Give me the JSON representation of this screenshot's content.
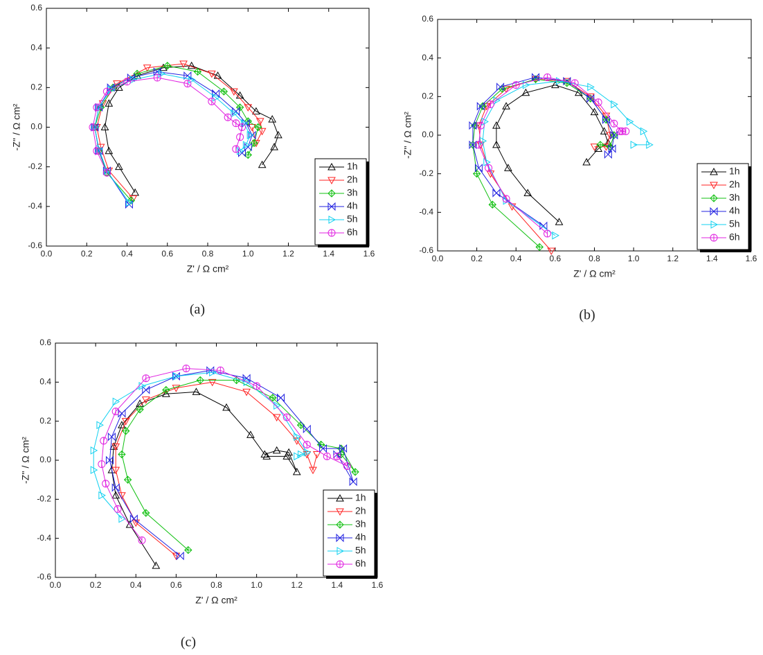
{
  "chart_data": [
    {
      "type": "line",
      "label": "(a)",
      "xlabel": "Z' / Ω cm²",
      "ylabel": "-Z'' / Ω cm²",
      "xlim": [
        0,
        1.6
      ],
      "ylim": [
        -0.6,
        0.6
      ],
      "xticks": [
        {
          "value": 0,
          "label": "0.0"
        },
        0.2,
        0.4,
        0.6,
        0.8,
        {
          "value": 1,
          "label": "1.0"
        },
        1.2,
        1.4,
        1.6
      ],
      "yticks": [
        -0.6,
        -0.4,
        -0.2,
        {
          "value": 0,
          "label": "0.0"
        },
        0.2,
        0.4,
        0.6
      ],
      "grid": false,
      "legend": "lower right",
      "series": [
        {
          "name": "1h",
          "color": "#000000",
          "marker": "triangle-up",
          "x": [
            0.44,
            0.36,
            0.31,
            0.29,
            0.31,
            0.36,
            0.45,
            0.58,
            0.72,
            0.85,
            0.96,
            1.04,
            1.12,
            1.15,
            1.13,
            1.07
          ],
          "values": [
            -0.33,
            -0.2,
            -0.12,
            0,
            0.12,
            0.2,
            0.26,
            0.3,
            0.31,
            0.26,
            0.16,
            0.08,
            0.04,
            -0.04,
            -0.1,
            -0.19
          ]
        },
        {
          "name": "2h",
          "color": "#ff2020",
          "marker": "triangle-down",
          "x": [
            0.43,
            0.31,
            0.27,
            0.25,
            0.28,
            0.35,
            0.5,
            0.68,
            0.82,
            0.93,
            1.0,
            1.06,
            1.07,
            1.04,
            1.02
          ],
          "values": [
            -0.36,
            -0.22,
            -0.1,
            0,
            0.12,
            0.22,
            0.3,
            0.32,
            0.27,
            0.18,
            0.1,
            0.03,
            -0.02,
            -0.08,
            0
          ]
        },
        {
          "name": "3h",
          "color": "#10c010",
          "marker": "diamond",
          "x": [
            0.42,
            0.3,
            0.26,
            0.24,
            0.27,
            0.33,
            0.45,
            0.6,
            0.75,
            0.88,
            0.96,
            1.0,
            1.05,
            1.03,
            1.0
          ],
          "values": [
            -0.37,
            -0.23,
            -0.12,
            0,
            0.1,
            0.2,
            0.27,
            0.31,
            0.28,
            0.18,
            0.1,
            0.03,
            0,
            -0.08,
            -0.14
          ]
        },
        {
          "name": "4h",
          "color": "#2020e0",
          "marker": "bowtie",
          "x": [
            0.41,
            0.3,
            0.26,
            0.24,
            0.26,
            0.32,
            0.42,
            0.55,
            0.7,
            0.84,
            0.94,
            0.99,
            1.02,
            1.0,
            0.97
          ],
          "values": [
            -0.39,
            -0.22,
            -0.12,
            0,
            0.1,
            0.2,
            0.25,
            0.28,
            0.26,
            0.17,
            0.08,
            0.02,
            -0.04,
            -0.1,
            -0.13
          ]
        },
        {
          "name": "5h",
          "color": "#10d0f0",
          "marker": "triangle-right",
          "x": [
            0.41,
            0.3,
            0.26,
            0.24,
            0.26,
            0.32,
            0.43,
            0.57,
            0.72,
            0.84,
            0.93,
            0.98,
            1.01,
            0.99,
            0.96
          ],
          "values": [
            -0.38,
            -0.22,
            -0.11,
            0,
            0.1,
            0.19,
            0.24,
            0.27,
            0.24,
            0.15,
            0.07,
            0.02,
            -0.04,
            -0.09,
            -0.12
          ]
        },
        {
          "name": "6h",
          "color": "#e020e0",
          "marker": "circle",
          "x": [
            0.3,
            0.25,
            0.23,
            0.25,
            0.3,
            0.4,
            0.55,
            0.7,
            0.82,
            0.9,
            0.94,
            0.97,
            0.96,
            0.94
          ],
          "values": [
            -0.23,
            -0.12,
            0,
            0.1,
            0.18,
            0.23,
            0.25,
            0.22,
            0.13,
            0.05,
            0.02,
            0,
            -0.05,
            -0.11
          ]
        }
      ]
    },
    {
      "type": "line",
      "label": "(b)",
      "xlabel": "Z' / Ω cm²",
      "ylabel": "-Z'' / Ω cm²",
      "xlim": [
        0,
        1.6
      ],
      "ylim": [
        -0.6,
        0.6
      ],
      "xticks": [
        {
          "value": 0,
          "label": "0.0"
        },
        0.2,
        0.4,
        0.6,
        0.8,
        {
          "value": 1,
          "label": "1.0"
        },
        1.2,
        1.4,
        1.6
      ],
      "yticks": [
        -0.6,
        -0.4,
        -0.2,
        {
          "value": 0,
          "label": "0.0"
        },
        0.2,
        0.4,
        0.6
      ],
      "grid": false,
      "legend": "lower right",
      "series": [
        {
          "name": "1h",
          "color": "#000000",
          "marker": "triangle-up",
          "x": [
            0.62,
            0.46,
            0.36,
            0.3,
            0.3,
            0.35,
            0.45,
            0.6,
            0.72,
            0.8,
            0.85,
            0.87,
            0.82,
            0.76
          ],
          "values": [
            -0.45,
            -0.3,
            -0.17,
            -0.05,
            0.05,
            0.15,
            0.22,
            0.26,
            0.22,
            0.12,
            0.02,
            -0.04,
            -0.07,
            -0.14
          ]
        },
        {
          "name": "2h",
          "color": "#ff2020",
          "marker": "triangle-down",
          "x": [
            0.58,
            0.38,
            0.27,
            0.22,
            0.21,
            0.25,
            0.35,
            0.5,
            0.66,
            0.78,
            0.86,
            0.88,
            0.86,
            0.8
          ],
          "values": [
            -0.6,
            -0.37,
            -0.2,
            -0.05,
            0.05,
            0.15,
            0.24,
            0.29,
            0.28,
            0.2,
            0.1,
            0,
            -0.06,
            -0.06
          ]
        },
        {
          "name": "3h",
          "color": "#10c010",
          "marker": "diamond",
          "x": [
            0.52,
            0.28,
            0.2,
            0.18,
            0.19,
            0.23,
            0.33,
            0.5,
            0.66,
            0.78,
            0.86,
            0.9,
            0.88,
            0.83
          ],
          "values": [
            -0.58,
            -0.36,
            -0.2,
            -0.05,
            0.05,
            0.15,
            0.24,
            0.29,
            0.27,
            0.19,
            0.08,
            0,
            -0.06,
            -0.05
          ]
        },
        {
          "name": "4h",
          "color": "#2020e0",
          "marker": "bowtie",
          "x": [
            0.54,
            0.3,
            0.21,
            0.18,
            0.18,
            0.22,
            0.32,
            0.5,
            0.66,
            0.78,
            0.86,
            0.9,
            0.89,
            0.87
          ],
          "values": [
            -0.47,
            -0.3,
            -0.17,
            -0.05,
            0.05,
            0.15,
            0.25,
            0.3,
            0.28,
            0.19,
            0.08,
            0,
            -0.07,
            -0.1
          ]
        },
        {
          "name": "5h",
          "color": "#10d0f0",
          "marker": "triangle-right",
          "x": [
            0.6,
            0.35,
            0.25,
            0.23,
            0.24,
            0.3,
            0.45,
            0.62,
            0.78,
            0.9,
            0.98,
            1.05,
            1.08,
            1.0
          ],
          "values": [
            -0.52,
            -0.34,
            -0.14,
            -0.03,
            0.07,
            0.18,
            0.26,
            0.28,
            0.25,
            0.16,
            0.07,
            0.02,
            -0.05,
            -0.05
          ]
        },
        {
          "name": "6h",
          "color": "#e020e0",
          "marker": "circle",
          "x": [
            0.56,
            0.35,
            0.26,
            0.21,
            0.22,
            0.27,
            0.4,
            0.56,
            0.7,
            0.82,
            0.9,
            0.94,
            0.96,
            0.93
          ],
          "values": [
            -0.51,
            -0.33,
            -0.17,
            -0.05,
            0.05,
            0.16,
            0.26,
            0.3,
            0.27,
            0.17,
            0.06,
            0.02,
            0.02,
            0.02
          ]
        }
      ]
    },
    {
      "type": "line",
      "label": "(c)",
      "xlabel": "Z' / Ω cm²",
      "ylabel": "-Z'' / Ω cm²",
      "xlim": [
        0,
        1.6
      ],
      "ylim": [
        -0.6,
        0.6
      ],
      "xticks": [
        {
          "value": 0,
          "label": "0.0"
        },
        0.2,
        0.4,
        0.6,
        0.8,
        {
          "value": 1,
          "label": "1.0"
        },
        1.2,
        1.4,
        1.6
      ],
      "yticks": [
        -0.6,
        -0.4,
        -0.2,
        {
          "value": 0,
          "label": "0.0"
        },
        0.2,
        0.4,
        0.6
      ],
      "grid": false,
      "legend": "lower right",
      "series": [
        {
          "name": "1h",
          "color": "#000000",
          "marker": "triangle-up",
          "x": [
            0.5,
            0.37,
            0.3,
            0.28,
            0.29,
            0.33,
            0.42,
            0.55,
            0.7,
            0.85,
            0.97,
            1.04,
            1.1,
            1.16,
            1.2,
            1.15,
            1.05
          ],
          "values": [
            -0.54,
            -0.33,
            -0.18,
            -0.05,
            0.07,
            0.18,
            0.29,
            0.34,
            0.35,
            0.27,
            0.13,
            0.03,
            0.05,
            0.04,
            -0.06,
            0.02,
            0.02
          ]
        },
        {
          "name": "2h",
          "color": "#ff2020",
          "marker": "triangle-down",
          "x": [
            0.6,
            0.4,
            0.33,
            0.3,
            0.3,
            0.35,
            0.45,
            0.6,
            0.78,
            0.95,
            1.1,
            1.2,
            1.25,
            1.28,
            1.3
          ],
          "values": [
            -0.49,
            -0.32,
            -0.18,
            -0.05,
            0.07,
            0.2,
            0.31,
            0.37,
            0.4,
            0.35,
            0.22,
            0.1,
            0.03,
            -0.05,
            0.03
          ]
        },
        {
          "name": "3h",
          "color": "#10c010",
          "marker": "diamond",
          "x": [
            0.66,
            0.45,
            0.36,
            0.33,
            0.35,
            0.42,
            0.55,
            0.72,
            0.9,
            1.08,
            1.22,
            1.32,
            1.42,
            1.49,
            1.42
          ],
          "values": [
            -0.46,
            -0.27,
            -0.1,
            0.03,
            0.15,
            0.26,
            0.36,
            0.41,
            0.41,
            0.32,
            0.18,
            0.08,
            0.06,
            -0.06,
            0.03
          ]
        },
        {
          "name": "4h",
          "color": "#2020e0",
          "marker": "bowtie",
          "x": [
            0.62,
            0.39,
            0.3,
            0.27,
            0.28,
            0.33,
            0.45,
            0.6,
            0.77,
            0.95,
            1.12,
            1.25,
            1.33,
            1.43,
            1.48,
            1.4
          ],
          "values": [
            -0.49,
            -0.3,
            -0.14,
            0,
            0.12,
            0.24,
            0.36,
            0.43,
            0.46,
            0.42,
            0.32,
            0.16,
            0.06,
            0.06,
            -0.11,
            0.03
          ]
        },
        {
          "name": "5h",
          "color": "#10d0f0",
          "marker": "triangle-right",
          "x": [
            0.33,
            0.23,
            0.19,
            0.19,
            0.22,
            0.3,
            0.43,
            0.6,
            0.78,
            0.95,
            1.1,
            1.2,
            1.25,
            1.2,
            1.22
          ],
          "values": [
            -0.3,
            -0.18,
            -0.05,
            0.05,
            0.18,
            0.3,
            0.38,
            0.43,
            0.45,
            0.4,
            0.28,
            0.12,
            0.04,
            0.02,
            0.03
          ]
        },
        {
          "name": "6h",
          "color": "#e020e0",
          "marker": "circle",
          "x": [
            0.43,
            0.31,
            0.25,
            0.23,
            0.24,
            0.3,
            0.45,
            0.65,
            0.82,
            1.0,
            1.15,
            1.25,
            1.35,
            1.45,
            1.4
          ],
          "values": [
            -0.41,
            -0.25,
            -0.12,
            -0.02,
            0.1,
            0.25,
            0.42,
            0.47,
            0.46,
            0.38,
            0.22,
            0.08,
            0.02,
            -0.03,
            0.02
          ]
        }
      ]
    }
  ]
}
